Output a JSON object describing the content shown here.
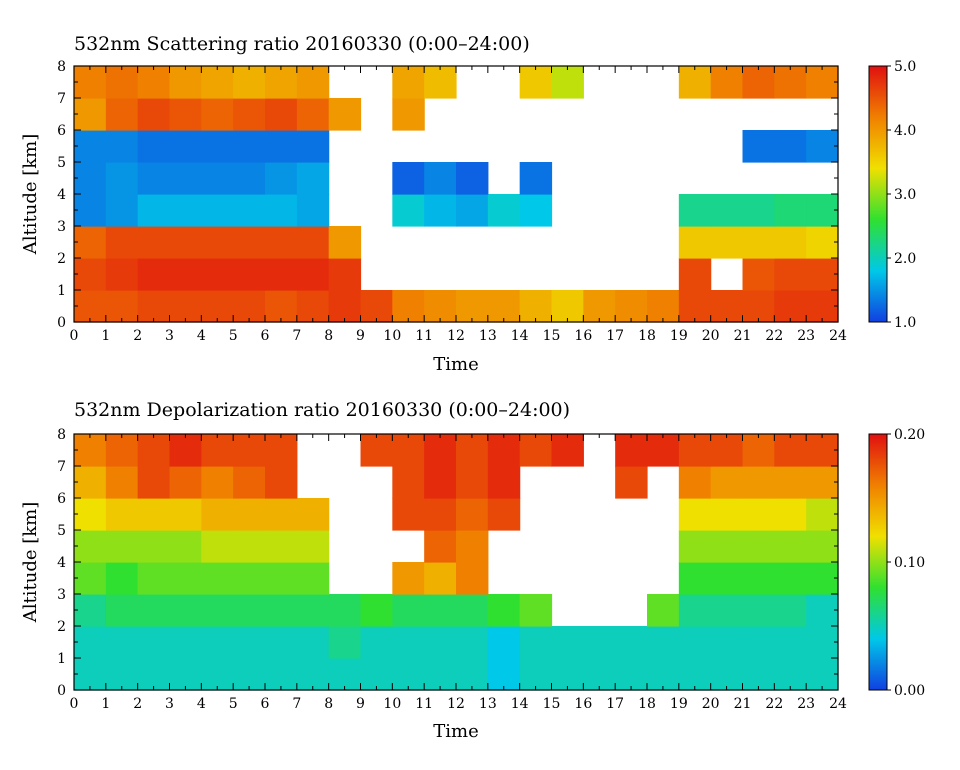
{
  "chart_data": [
    {
      "type": "heatmap",
      "title": "532nm Scattering ratio  20160330 (0:00–24:00)",
      "xlabel": "Time",
      "ylabel": "Altitude [km]",
      "x_ticks": [
        "0",
        "1",
        "2",
        "3",
        "4",
        "5",
        "6",
        "7",
        "8",
        "9",
        "10",
        "11",
        "12",
        "13",
        "14",
        "15",
        "16",
        "17",
        "18",
        "19",
        "20",
        "21",
        "22",
        "23",
        "24"
      ],
      "y_ticks": [
        "0",
        "1",
        "2",
        "3",
        "4",
        "5",
        "6",
        "7",
        "8"
      ],
      "xlim": [
        0,
        24
      ],
      "ylim": [
        0,
        8
      ],
      "colorbar": {
        "min": 1.0,
        "max": 5.0,
        "tick_labels": [
          "1.0",
          "2.0",
          "3.0",
          "4.0",
          "5.0"
        ],
        "colors": [
          "#1040e0",
          "#00c8e8",
          "#30e030",
          "#f0e000",
          "#f08000",
          "#e01010"
        ]
      },
      "values": [
        [
          4.5,
          4.5,
          4.6,
          4.6,
          4.6,
          4.6,
          4.5,
          4.6,
          4.7,
          4.6,
          4.2,
          4.1,
          4.0,
          4.0,
          3.8,
          3.6,
          4.0,
          4.1,
          4.2,
          4.6,
          4.6,
          4.6,
          4.7,
          4.7
        ],
        [
          4.6,
          4.7,
          4.8,
          4.8,
          4.8,
          4.8,
          4.8,
          4.8,
          4.7,
          null,
          null,
          null,
          null,
          null,
          null,
          null,
          null,
          null,
          null,
          4.6,
          null,
          4.5,
          4.6,
          4.6
        ],
        [
          4.4,
          4.6,
          4.6,
          4.6,
          4.6,
          4.6,
          4.6,
          4.6,
          4.0,
          null,
          null,
          null,
          null,
          null,
          null,
          null,
          null,
          null,
          null,
          3.6,
          3.6,
          3.6,
          3.6,
          3.5
        ],
        [
          1.4,
          1.5,
          1.7,
          1.7,
          1.7,
          1.7,
          1.7,
          1.6,
          null,
          null,
          1.9,
          1.7,
          1.6,
          1.9,
          1.8,
          null,
          null,
          null,
          null,
          2.2,
          2.2,
          2.2,
          2.3,
          2.3
        ],
        [
          1.4,
          1.5,
          1.4,
          1.4,
          1.4,
          1.4,
          1.5,
          1.6,
          null,
          null,
          1.2,
          1.4,
          1.2,
          null,
          1.3,
          null,
          null,
          null,
          null,
          null,
          null,
          null,
          null,
          null
        ],
        [
          1.4,
          1.4,
          1.3,
          1.3,
          1.3,
          1.3,
          1.3,
          1.3,
          null,
          null,
          null,
          null,
          null,
          null,
          null,
          null,
          null,
          null,
          null,
          null,
          null,
          1.3,
          1.3,
          1.4
        ],
        [
          4.0,
          4.4,
          4.6,
          4.5,
          4.4,
          4.5,
          4.6,
          4.4,
          4.0,
          null,
          4.0,
          null,
          null,
          null,
          null,
          null,
          null,
          null,
          null,
          null,
          null,
          null,
          null,
          null
        ],
        [
          4.2,
          4.3,
          4.2,
          4.0,
          3.9,
          3.8,
          3.9,
          4.0,
          null,
          null,
          3.9,
          3.7,
          null,
          null,
          3.6,
          3.2,
          null,
          null,
          null,
          3.8,
          4.2,
          4.4,
          4.3,
          4.2
        ]
      ]
    },
    {
      "type": "heatmap",
      "title": "532nm Depolarization ratio  20160330 (0:00–24:00)",
      "xlabel": "Time",
      "ylabel": "Altitude [km]",
      "x_ticks": [
        "0",
        "1",
        "2",
        "3",
        "4",
        "5",
        "6",
        "7",
        "8",
        "9",
        "10",
        "11",
        "12",
        "13",
        "14",
        "15",
        "16",
        "17",
        "18",
        "19",
        "20",
        "21",
        "22",
        "23",
        "24"
      ],
      "y_ticks": [
        "0",
        "1",
        "2",
        "3",
        "4",
        "5",
        "6",
        "7",
        "8"
      ],
      "xlim": [
        0,
        24
      ],
      "ylim": [
        0,
        8
      ],
      "colorbar": {
        "min": 0.0,
        "max": 0.2,
        "tick_labels": [
          "0.00",
          "0.10",
          "0.20"
        ],
        "colors": [
          "#1040e0",
          "#00c8e8",
          "#30e030",
          "#f0e000",
          "#f08000",
          "#e01010"
        ]
      },
      "values": [
        [
          0.05,
          0.05,
          0.05,
          0.05,
          0.05,
          0.05,
          0.05,
          0.05,
          0.05,
          0.05,
          0.05,
          0.05,
          0.05,
          0.04,
          0.05,
          0.05,
          0.05,
          0.05,
          0.05,
          0.05,
          0.05,
          0.05,
          0.05,
          0.05
        ],
        [
          0.05,
          0.05,
          0.05,
          0.05,
          0.05,
          0.05,
          0.05,
          0.05,
          0.06,
          0.05,
          0.05,
          0.05,
          0.05,
          0.04,
          0.05,
          0.05,
          0.05,
          0.05,
          0.05,
          0.05,
          0.05,
          0.05,
          0.05,
          0.05
        ],
        [
          0.06,
          0.07,
          0.07,
          0.07,
          0.07,
          0.07,
          0.07,
          0.07,
          0.07,
          0.08,
          0.07,
          0.07,
          0.07,
          0.08,
          0.09,
          null,
          null,
          null,
          0.09,
          0.06,
          0.06,
          0.06,
          0.06,
          0.05
        ],
        [
          0.09,
          0.08,
          0.09,
          0.09,
          0.09,
          0.09,
          0.09,
          0.09,
          null,
          null,
          0.15,
          0.14,
          0.16,
          null,
          null,
          null,
          null,
          null,
          null,
          0.08,
          0.08,
          0.08,
          0.08,
          0.08
        ],
        [
          0.1,
          0.1,
          0.1,
          0.1,
          0.11,
          0.11,
          0.11,
          0.11,
          null,
          null,
          null,
          0.17,
          0.16,
          null,
          null,
          null,
          null,
          null,
          null,
          0.1,
          0.1,
          0.1,
          0.1,
          0.1
        ],
        [
          0.12,
          0.13,
          0.13,
          0.13,
          0.14,
          0.14,
          0.14,
          0.14,
          null,
          null,
          0.18,
          0.18,
          0.17,
          0.18,
          null,
          null,
          null,
          null,
          null,
          0.12,
          0.12,
          0.12,
          0.12,
          0.11
        ],
        [
          0.14,
          0.16,
          0.18,
          0.17,
          0.16,
          0.17,
          0.18,
          null,
          null,
          null,
          0.18,
          0.19,
          0.18,
          0.19,
          null,
          null,
          null,
          0.18,
          null,
          0.16,
          0.15,
          0.15,
          0.15,
          0.15
        ],
        [
          0.16,
          0.17,
          0.18,
          0.19,
          0.18,
          0.18,
          0.18,
          null,
          null,
          0.18,
          0.18,
          0.19,
          0.18,
          0.19,
          0.18,
          0.19,
          null,
          0.19,
          0.19,
          0.18,
          0.18,
          0.17,
          0.18,
          0.18
        ]
      ]
    }
  ]
}
